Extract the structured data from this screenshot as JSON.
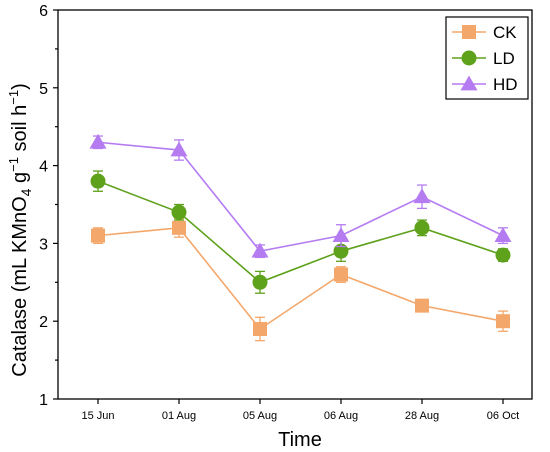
{
  "chart_data": {
    "type": "line",
    "categories": [
      "15 Jun",
      "01 Aug",
      "05 Aug",
      "06 Aug",
      "28 Aug",
      "06 Oct"
    ],
    "xlabel": "Time",
    "ylabel": {
      "prefix": "Catalase (mL KMnO",
      "sub4": "4",
      "g": " g",
      "sup1": "−1",
      "soil": " soil h",
      "sup2": "−1",
      "suffix": ")"
    },
    "ylim": [
      1,
      6
    ],
    "yticks": [
      1,
      2,
      3,
      4,
      5,
      6
    ],
    "legend_position": "top-right",
    "series": [
      {
        "name": "CK",
        "color": "#f4a76a",
        "marker": "square",
        "values": [
          3.1,
          3.2,
          1.9,
          2.6,
          2.2,
          2.0
        ],
        "errors": [
          0.1,
          0.12,
          0.15,
          0.1,
          0.07,
          0.13
        ]
      },
      {
        "name": "LD",
        "color": "#5ea11b",
        "marker": "circle",
        "values": [
          3.8,
          3.4,
          2.5,
          2.9,
          3.2,
          2.85
        ],
        "errors": [
          0.13,
          0.1,
          0.14,
          0.13,
          0.1,
          0.08
        ]
      },
      {
        "name": "HD",
        "color": "#b57cf2",
        "marker": "triangle",
        "values": [
          4.3,
          4.2,
          2.9,
          3.1,
          3.6,
          3.1
        ],
        "errors": [
          0.08,
          0.13,
          0.08,
          0.14,
          0.15,
          0.1
        ]
      }
    ]
  }
}
